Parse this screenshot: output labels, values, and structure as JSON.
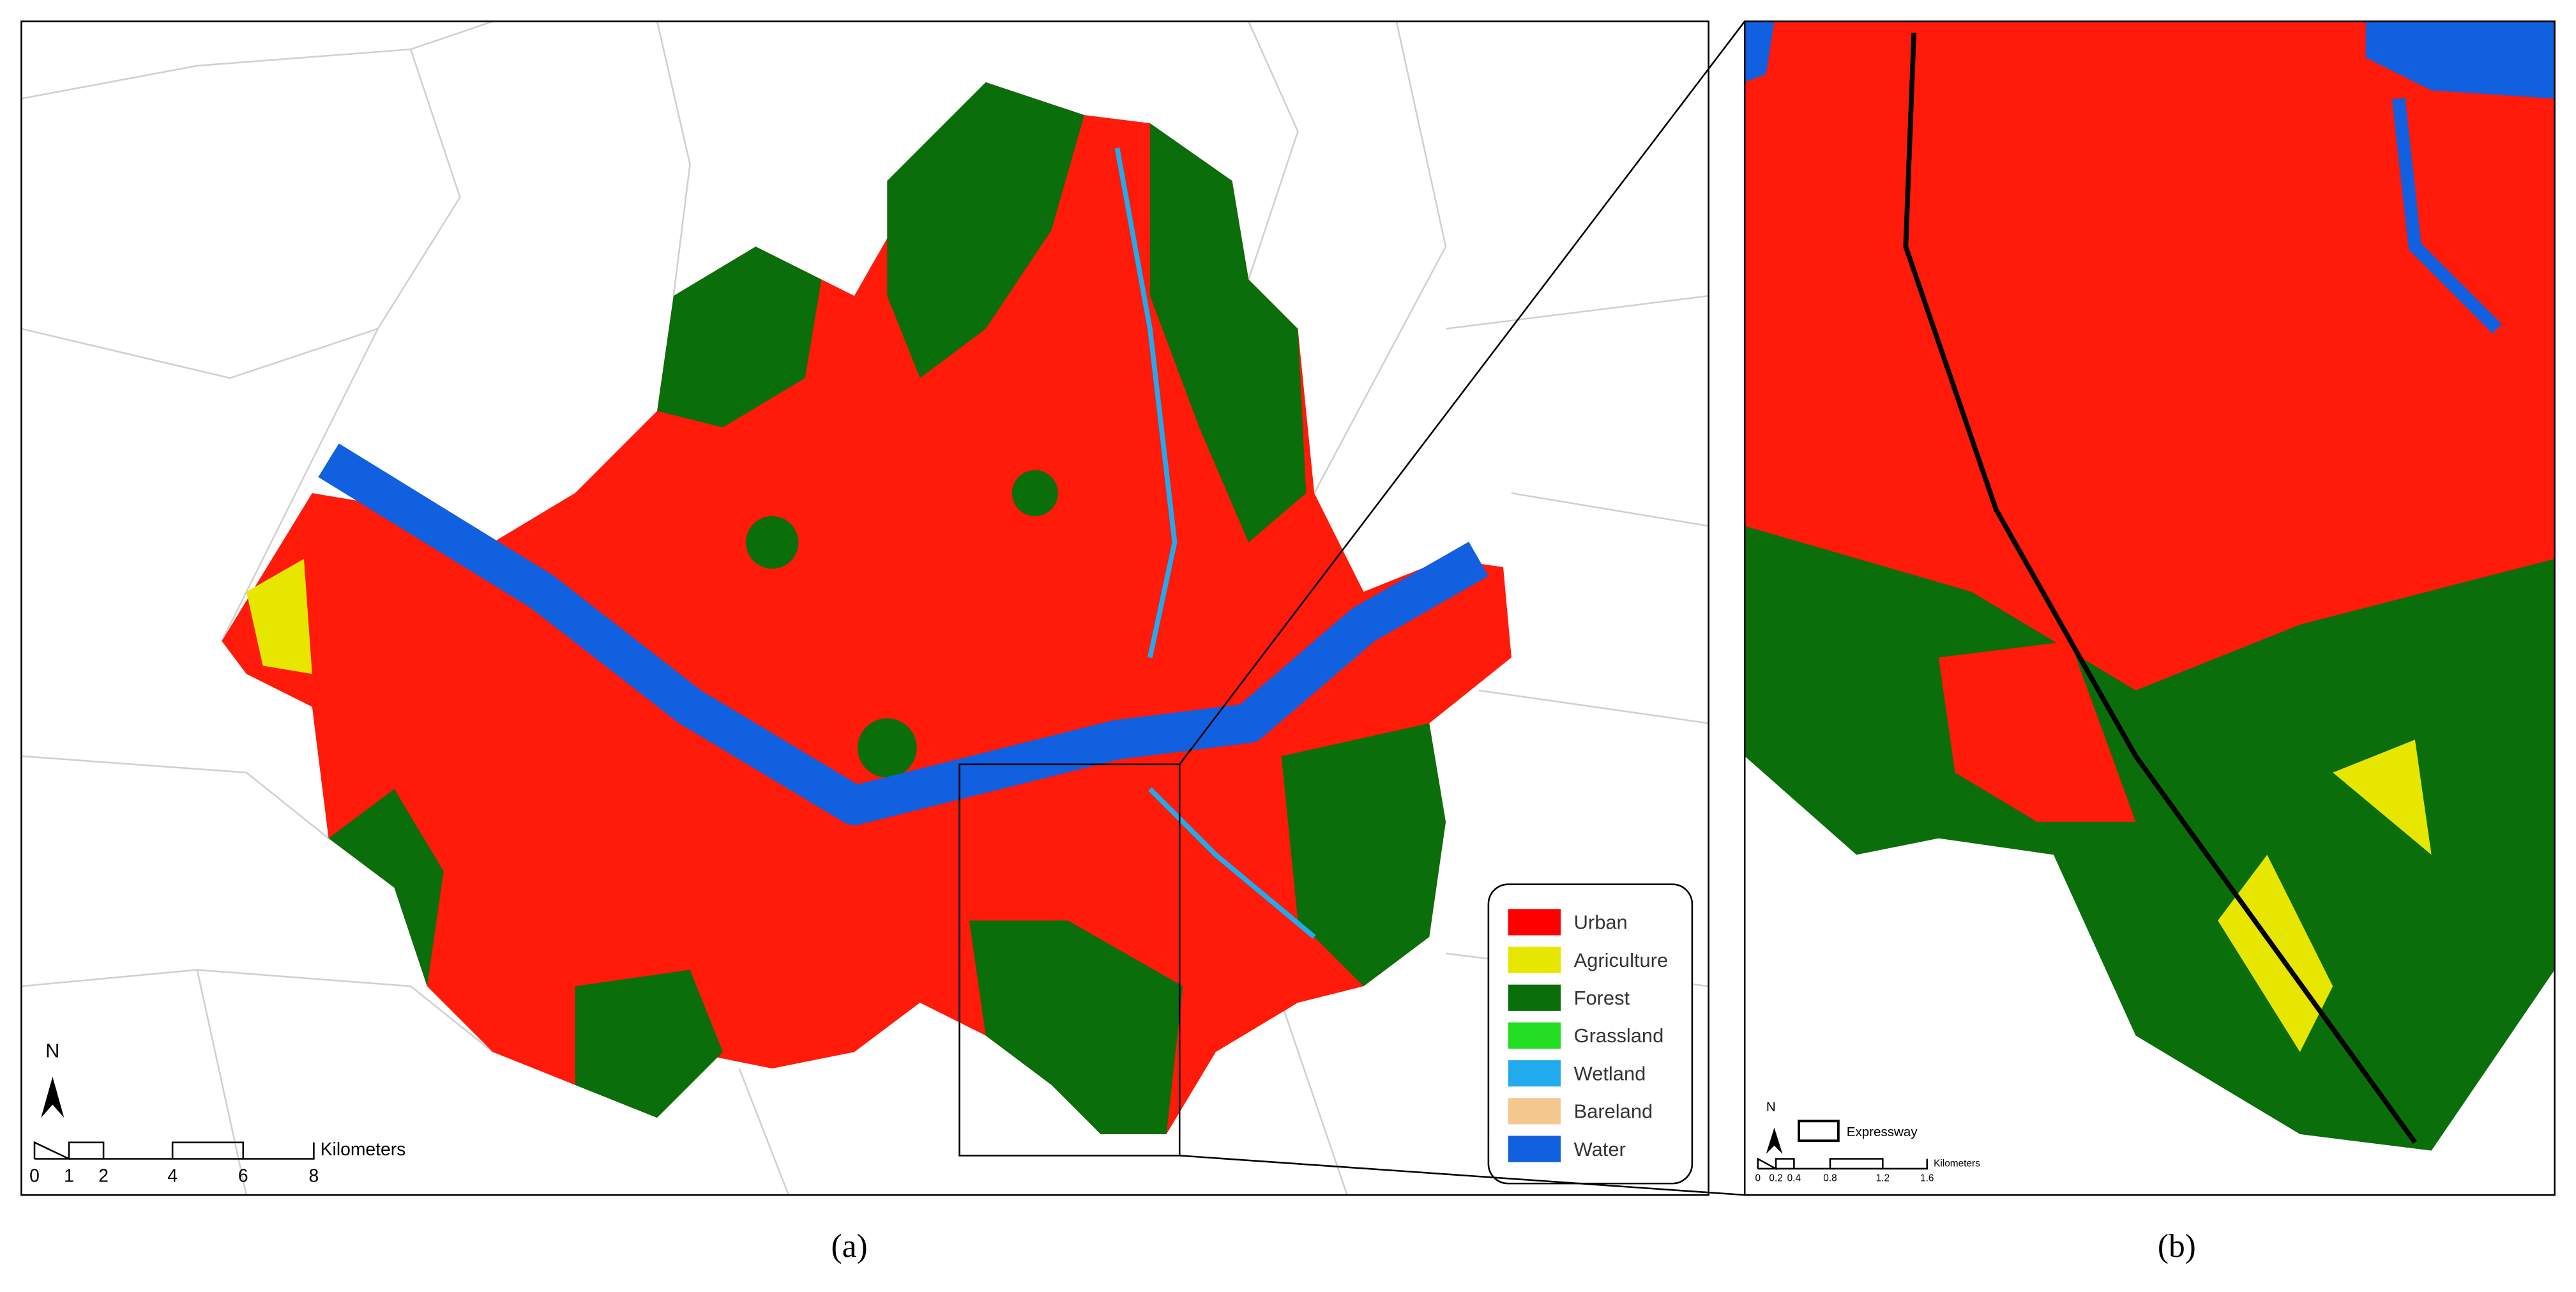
{
  "panel_a": {
    "label": "(a)",
    "north": "N",
    "scale_bar": {
      "labels": [
        "0",
        "1",
        "2",
        "4",
        "6",
        "8"
      ],
      "unit": "Kilometers"
    },
    "legend": [
      {
        "name": "Urban",
        "color": "#ff0000"
      },
      {
        "name": "Agriculture",
        "color": "#e6e600"
      },
      {
        "name": "Forest",
        "color": "#0a6e0a"
      },
      {
        "name": "Grassland",
        "color": "#22dd22"
      },
      {
        "name": "Wetland",
        "color": "#22aaee"
      },
      {
        "name": "Bareland",
        "color": "#f5c890"
      },
      {
        "name": "Water",
        "color": "#1060e0"
      }
    ]
  },
  "panel_b": {
    "label": "(b)",
    "north": "N",
    "expressway": "Expressway",
    "scale_bar": {
      "labels": [
        "0",
        "0.2",
        "0.4",
        "0.8",
        "1.2",
        "1.6"
      ],
      "unit": "Kilometers"
    }
  }
}
